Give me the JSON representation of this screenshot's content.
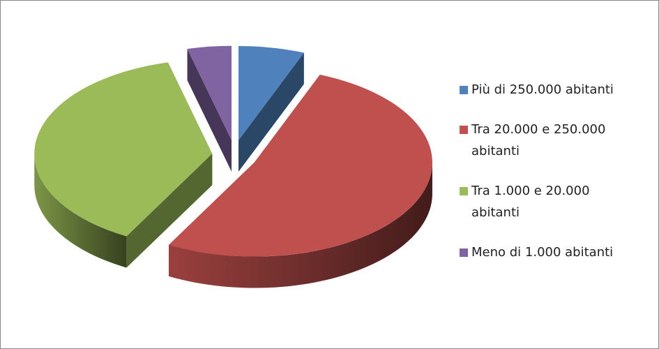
{
  "chart_data": {
    "type": "pie3d",
    "categories": [
      "Più di 250.000 abitanti",
      "Tra 20.000 e 250.000 abitanti",
      "Tra 1.000 e 20.000 abitanti",
      "Meno di 1.000 abitanti"
    ],
    "values": [
      6,
      52,
      38,
      4
    ],
    "colors": [
      "#4f81bd",
      "#c0504d",
      "#9bbb59",
      "#8064a2"
    ],
    "legend": "right"
  }
}
